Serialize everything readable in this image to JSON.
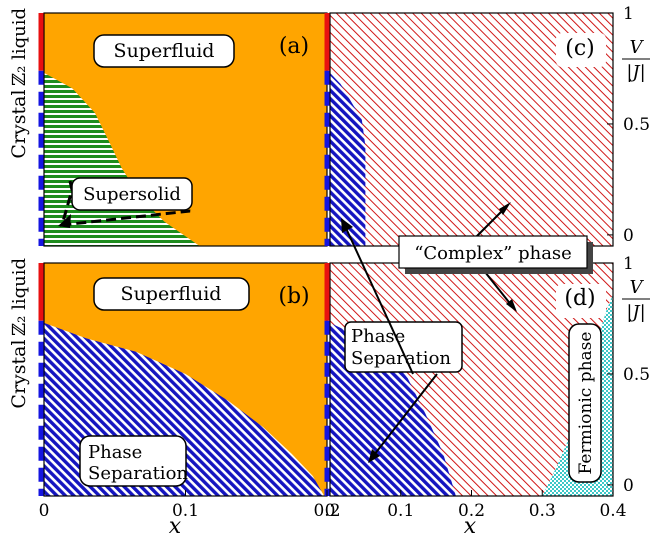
{
  "chart_data": [
    {
      "panel_label": "(a)",
      "type": "area",
      "ylim": [
        -0.05,
        1.0
      ],
      "xlim": [
        0,
        0.2
      ],
      "regions": [
        {
          "name": "Superfluid",
          "color": "#ffa500",
          "pattern": "solid"
        },
        {
          "name": "Supersolid",
          "color": "#1e8c1e",
          "pattern": "horizontal-stripes",
          "boundary": [
            {
              "x": 0,
              "y": 0.73
            },
            {
              "x": 0.02,
              "y": 0.66
            },
            {
              "x": 0.036,
              "y": 0.55
            },
            {
              "x": 0.046,
              "y": 0.42
            },
            {
              "x": 0.055,
              "y": 0.3
            },
            {
              "x": 0.068,
              "y": 0.17
            },
            {
              "x": 0.085,
              "y": 0.06
            },
            {
              "x": 0.11,
              "y": -0.05
            }
          ]
        }
      ],
      "annotations": [
        "Superfluid",
        "Supersolid"
      ]
    },
    {
      "panel_label": "(b)",
      "type": "area",
      "ylim": [
        -0.05,
        1.0
      ],
      "xlim": [
        0,
        0.2
      ],
      "regions": [
        {
          "name": "Superfluid",
          "color": "#ffa500",
          "pattern": "solid"
        },
        {
          "name": "Phase Separation",
          "color": "#1515c0",
          "pattern": "diagonal-hatch",
          "boundary": [
            {
              "x": 0,
              "y": 0.73
            },
            {
              "x": 0.03,
              "y": 0.66
            },
            {
              "x": 0.065,
              "y": 0.6
            },
            {
              "x": 0.1,
              "y": 0.5
            },
            {
              "x": 0.13,
              "y": 0.38
            },
            {
              "x": 0.155,
              "y": 0.26
            },
            {
              "x": 0.175,
              "y": 0.14
            },
            {
              "x": 0.19,
              "y": 0.04
            },
            {
              "x": 0.198,
              "y": -0.05
            }
          ]
        }
      ],
      "annotations": [
        "Superfluid",
        "Phase Separation"
      ],
      "xticks": [
        "0",
        "0.1",
        "0.2"
      ],
      "xlabel": "x"
    },
    {
      "panel_label": "(c)",
      "type": "area",
      "ylim": [
        -0.05,
        1.0
      ],
      "xlim": [
        0,
        0.4
      ],
      "regions": [
        {
          "name": "“Complex” phase",
          "color": "#d01818",
          "pattern": "diagonal-hatch"
        },
        {
          "name": "Phase Separation",
          "color": "#1515c0",
          "pattern": "diagonal-hatch",
          "boundary": [
            {
              "x": 0,
              "y": 0.73
            },
            {
              "x": 0.015,
              "y": 0.68
            },
            {
              "x": 0.03,
              "y": 0.6
            },
            {
              "x": 0.045,
              "y": 0.52
            },
            {
              "x": 0.05,
              "y": 0.4
            },
            {
              "x": 0.05,
              "y": -0.05
            }
          ]
        }
      ],
      "yticks": [
        "0",
        "0.5",
        "1"
      ],
      "ylabel": "V/|J|"
    },
    {
      "panel_label": "(d)",
      "type": "area",
      "ylim": [
        -0.05,
        1.0
      ],
      "xlim": [
        0,
        0.4
      ],
      "regions": [
        {
          "name": "“Complex” phase",
          "color": "#d01818",
          "pattern": "diagonal-hatch"
        },
        {
          "name": "Phase Separation",
          "color": "#1515c0",
          "pattern": "diagonal-hatch",
          "boundary": [
            {
              "x": 0,
              "y": 0.73
            },
            {
              "x": 0.04,
              "y": 0.67
            },
            {
              "x": 0.08,
              "y": 0.6
            },
            {
              "x": 0.11,
              "y": 0.48
            },
            {
              "x": 0.135,
              "y": 0.32
            },
            {
              "x": 0.16,
              "y": 0.14
            },
            {
              "x": 0.178,
              "y": -0.05
            }
          ]
        },
        {
          "name": "Fermionic phase",
          "color": "#3cc8c8",
          "pattern": "checker",
          "boundary": [
            {
              "x": 0.3,
              "y": -0.05
            },
            {
              "x": 0.32,
              "y": 0.08
            },
            {
              "x": 0.35,
              "y": 0.3
            },
            {
              "x": 0.375,
              "y": 0.62
            },
            {
              "x": 0.39,
              "y": 0.78
            },
            {
              "x": 0.4,
              "y": 0.86
            }
          ]
        }
      ],
      "annotations": [
        "Phase Separation",
        "Fermionic phase"
      ],
      "xticks": [
        "0",
        "0.1",
        "0.2",
        "0.3",
        "0.4"
      ],
      "yticks": [
        "0",
        "0.5",
        "1"
      ],
      "xlabel": "x",
      "ylabel": "V/|J|"
    }
  ],
  "left_axis": {
    "z2_label": "ℤ₂ liquid",
    "z2_color": "#e81010",
    "z2_range": [
      0.74,
      1.0
    ],
    "crystal_label": "Crystal",
    "crystal_color": "#1515e0",
    "crystal_range": [
      -0.05,
      0.74
    ]
  },
  "labels": {
    "a": "(a)",
    "b": "(b)",
    "c": "(c)",
    "d": "(d)",
    "superfluid": "Superfluid",
    "supersolid": "Supersolid",
    "complex_phase": "“Complex” phase",
    "phase_sep_line1": "Phase",
    "phase_sep_line2": "Separation",
    "fermionic": "Fermionic phase",
    "xlabel": "x",
    "ylabel_num": "V",
    "ylabel_den": "|J|"
  },
  "ticks": {
    "x_left": [
      "0",
      "0.1",
      "0.2"
    ],
    "x_right": [
      "0",
      "0.1",
      "0.2",
      "0.3",
      "0.4"
    ],
    "y_right": [
      "0",
      "0.5",
      "1"
    ]
  }
}
